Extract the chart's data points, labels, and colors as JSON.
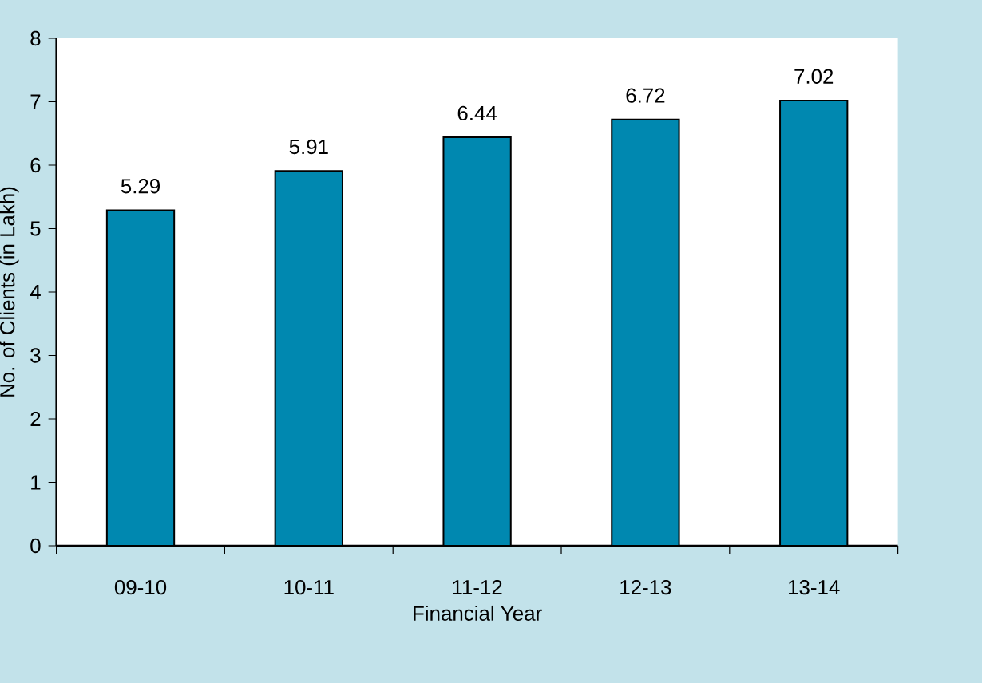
{
  "chart_data": {
    "type": "bar",
    "xlabel": "Financial Year",
    "ylabel": "No. of Clients (in Lakh)",
    "categories": [
      "09-10",
      "10-11",
      "11-12",
      "12-13",
      "13-14"
    ],
    "values": [
      5.29,
      5.91,
      6.44,
      6.72,
      7.02
    ],
    "color": "#0088b0",
    "ylim": [
      0,
      8
    ],
    "yticks": [
      0,
      1,
      2,
      3,
      4,
      5,
      6,
      7,
      8
    ],
    "data_labels": true,
    "grid": false
  }
}
